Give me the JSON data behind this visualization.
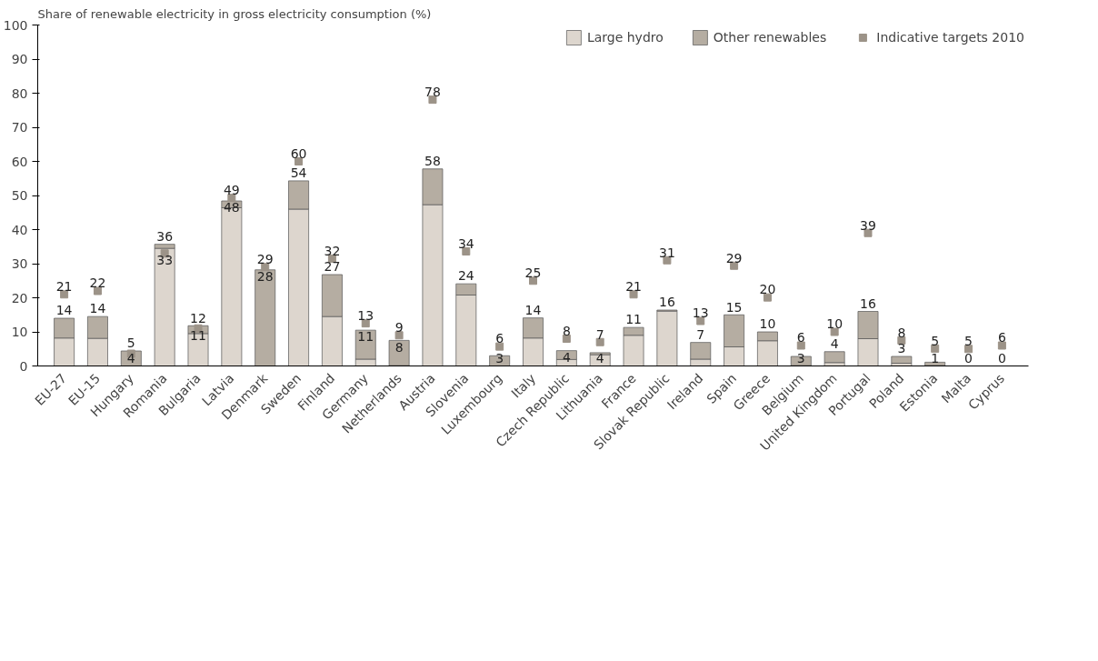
{
  "chart_data": {
    "type": "bar",
    "stacked": true,
    "ylabel": "Share of renewable electricity in gross electricity consumption (%)",
    "categories": [
      "EU-27",
      "EU-15",
      "Hungary",
      "Romania",
      "Bulgaria",
      "Latvia",
      "Denmark",
      "Sweden",
      "Finland",
      "Germany",
      "Netherlands",
      "Austria",
      "Slovenia",
      "Luxembourg",
      "Italy",
      "Czech Republic",
      "Lithuania",
      "France",
      "Slovak Republic",
      "Ireland",
      "Spain",
      "Greece",
      "Belgium",
      "United Kingdom",
      "Portugal",
      "Poland",
      "Estonia",
      "Malta",
      "Cyprus"
    ],
    "series": [
      {
        "name": "Large hydro",
        "color": "#ddd6ce",
        "values": [
          8.2,
          8.1,
          null,
          34.5,
          9.5,
          46.4,
          0,
          46,
          14.5,
          2,
          0.1,
          47.3,
          20.8,
          null,
          8.2,
          1.9,
          3.3,
          9,
          16.1,
          2,
          5.6,
          7.4,
          0.1,
          1,
          8,
          0.8,
          0.1,
          0,
          0
        ]
      },
      {
        "name": "Other renewables",
        "color": "#b5ada2",
        "values": [
          5.8,
          6.4,
          4.4,
          1.2,
          2.3,
          2,
          28.2,
          8.3,
          12.3,
          8.5,
          7.4,
          10.5,
          3.3,
          3,
          5.9,
          2.6,
          0.6,
          2.3,
          0.3,
          4.9,
          9.4,
          2.6,
          2.7,
          3.2,
          8,
          2,
          1,
          0,
          0
        ]
      },
      {
        "name": "Indicative targets 2010",
        "type": "scatter",
        "marker": "square",
        "color": "#9c9388",
        "values": [
          21,
          22,
          3.6,
          33,
          11,
          49.3,
          29,
          60,
          31.5,
          12.5,
          9,
          78.1,
          33.6,
          5.7,
          25,
          8,
          7,
          21,
          31,
          13.2,
          29.4,
          20.1,
          6,
          10,
          39,
          7.5,
          5.1,
          5,
          6
        ],
        "value_labels": [
          "21",
          "22",
          "4",
          "33",
          "11",
          "49",
          "29",
          "60",
          "32",
          "13",
          "9",
          "78",
          "34",
          "6",
          "25",
          "8",
          "7",
          "21",
          "31",
          "13",
          "29",
          "20",
          "6",
          "10",
          "39",
          "8",
          "5",
          "5",
          "6"
        ]
      }
    ],
    "totals": [
      "14",
      "14",
      "5",
      "36",
      "12",
      "48",
      "28",
      "54",
      "27",
      "11",
      "8",
      "58",
      "24",
      "3",
      "14",
      "4",
      "4",
      "11",
      "16",
      "7",
      "15",
      "10",
      "3",
      "4",
      "16",
      "3",
      "1",
      "0",
      "0"
    ],
    "ylim": [
      0,
      100
    ],
    "yticks": [
      0,
      10,
      20,
      30,
      40,
      50,
      60,
      70,
      80,
      90,
      100
    ],
    "grid": false,
    "legend": "top right"
  }
}
